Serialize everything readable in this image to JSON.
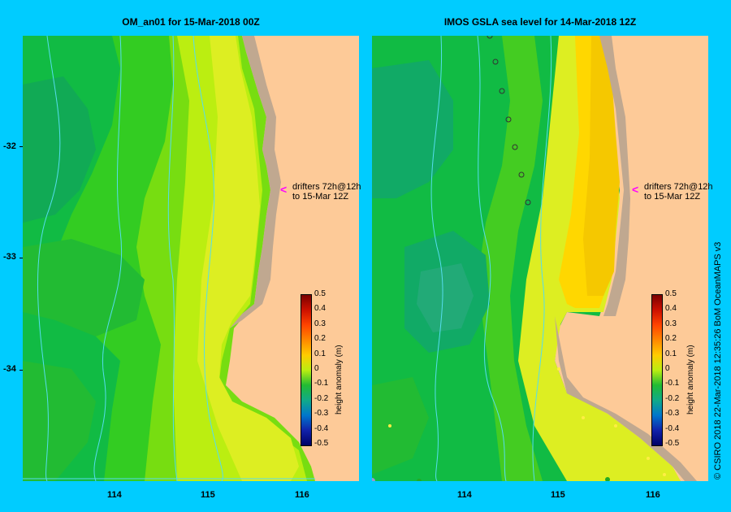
{
  "panels": [
    {
      "title": "OM_an01  for 15-Mar-2018 00Z"
    },
    {
      "title": "IMOS GSLA sea level  for 14-Mar-2018 12Z"
    }
  ],
  "x_ticks": [
    "114",
    "115",
    "116"
  ],
  "y_ticks": [
    "-32",
    "-33",
    "-34"
  ],
  "drifters": {
    "line1": "drifters 72h@12h",
    "line2": "to 15-Mar 12Z"
  },
  "colorbar": {
    "title": "height anomaly (m)",
    "labels": [
      "0.5",
      "0.4",
      "0.3",
      "0.2",
      "0.1",
      "0",
      "-0.1",
      "-0.2",
      "-0.3",
      "-0.4",
      "-0.5"
    ]
  },
  "credit": "© CSIRO 2018   22-Mar-2018 12:35:26 BoM OceanMAPS v3",
  "colors": {
    "land": "#fdca98",
    "frame": "#00ccff",
    "shelf": "#c0a890",
    "contour": "#55ddee"
  }
}
